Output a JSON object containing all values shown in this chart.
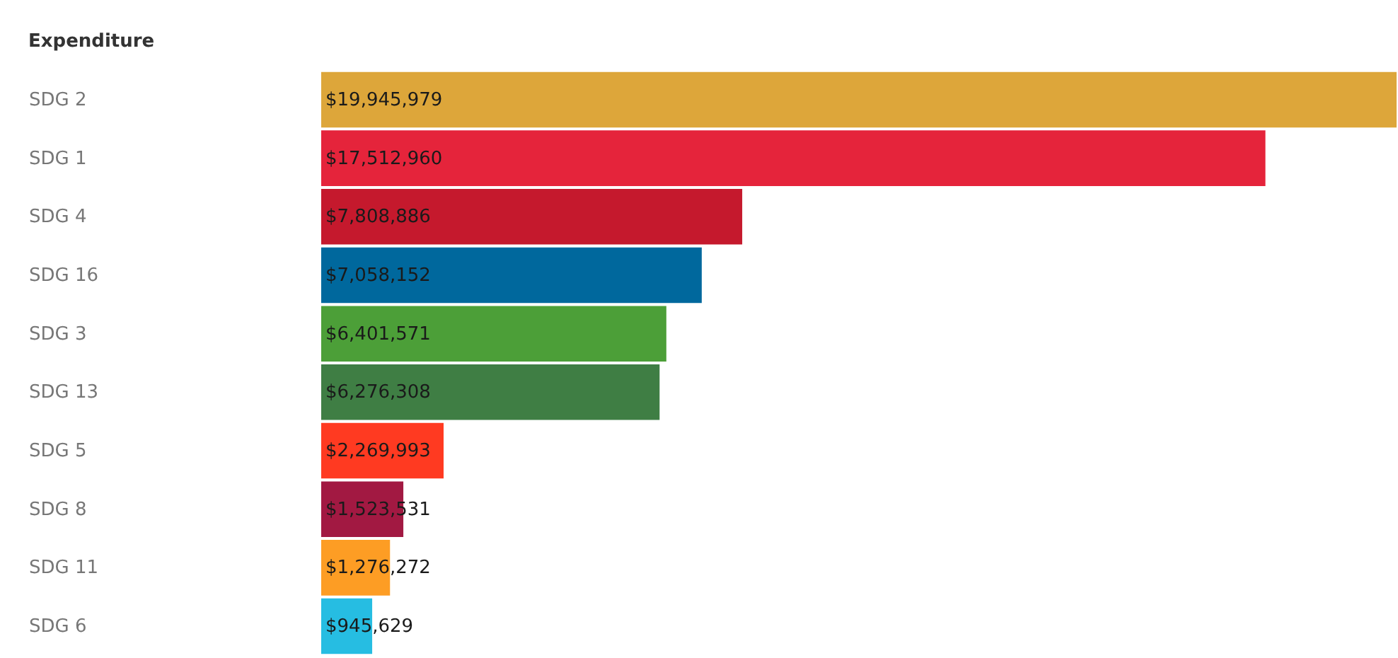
{
  "chart_data": {
    "type": "bar",
    "orientation": "horizontal",
    "title": "Expenditure",
    "categories": [
      "SDG 2",
      "SDG 1",
      "SDG 4",
      "SDG 16",
      "SDG 3",
      "SDG 13",
      "SDG 5",
      "SDG 8",
      "SDG 11",
      "SDG 6"
    ],
    "values": [
      19945979,
      17512960,
      7808886,
      7058152,
      6401571,
      6276308,
      2269993,
      1523531,
      1276272,
      945629
    ],
    "colors": [
      "#dda63a",
      "#e5243b",
      "#c5192d",
      "#00689d",
      "#4c9f38",
      "#3f7e44",
      "#ff3a21",
      "#a21942",
      "#fd9d24",
      "#26bde2"
    ],
    "value_labels": [
      "$19,945,979",
      "$17,512,960",
      "$7,808,886",
      "$7,058,152",
      "$6,401,571",
      "$6,276,308",
      "$2,269,993",
      "$1,523,531",
      "$1,276,272",
      "$945,629"
    ],
    "grid": false,
    "legend": false
  }
}
